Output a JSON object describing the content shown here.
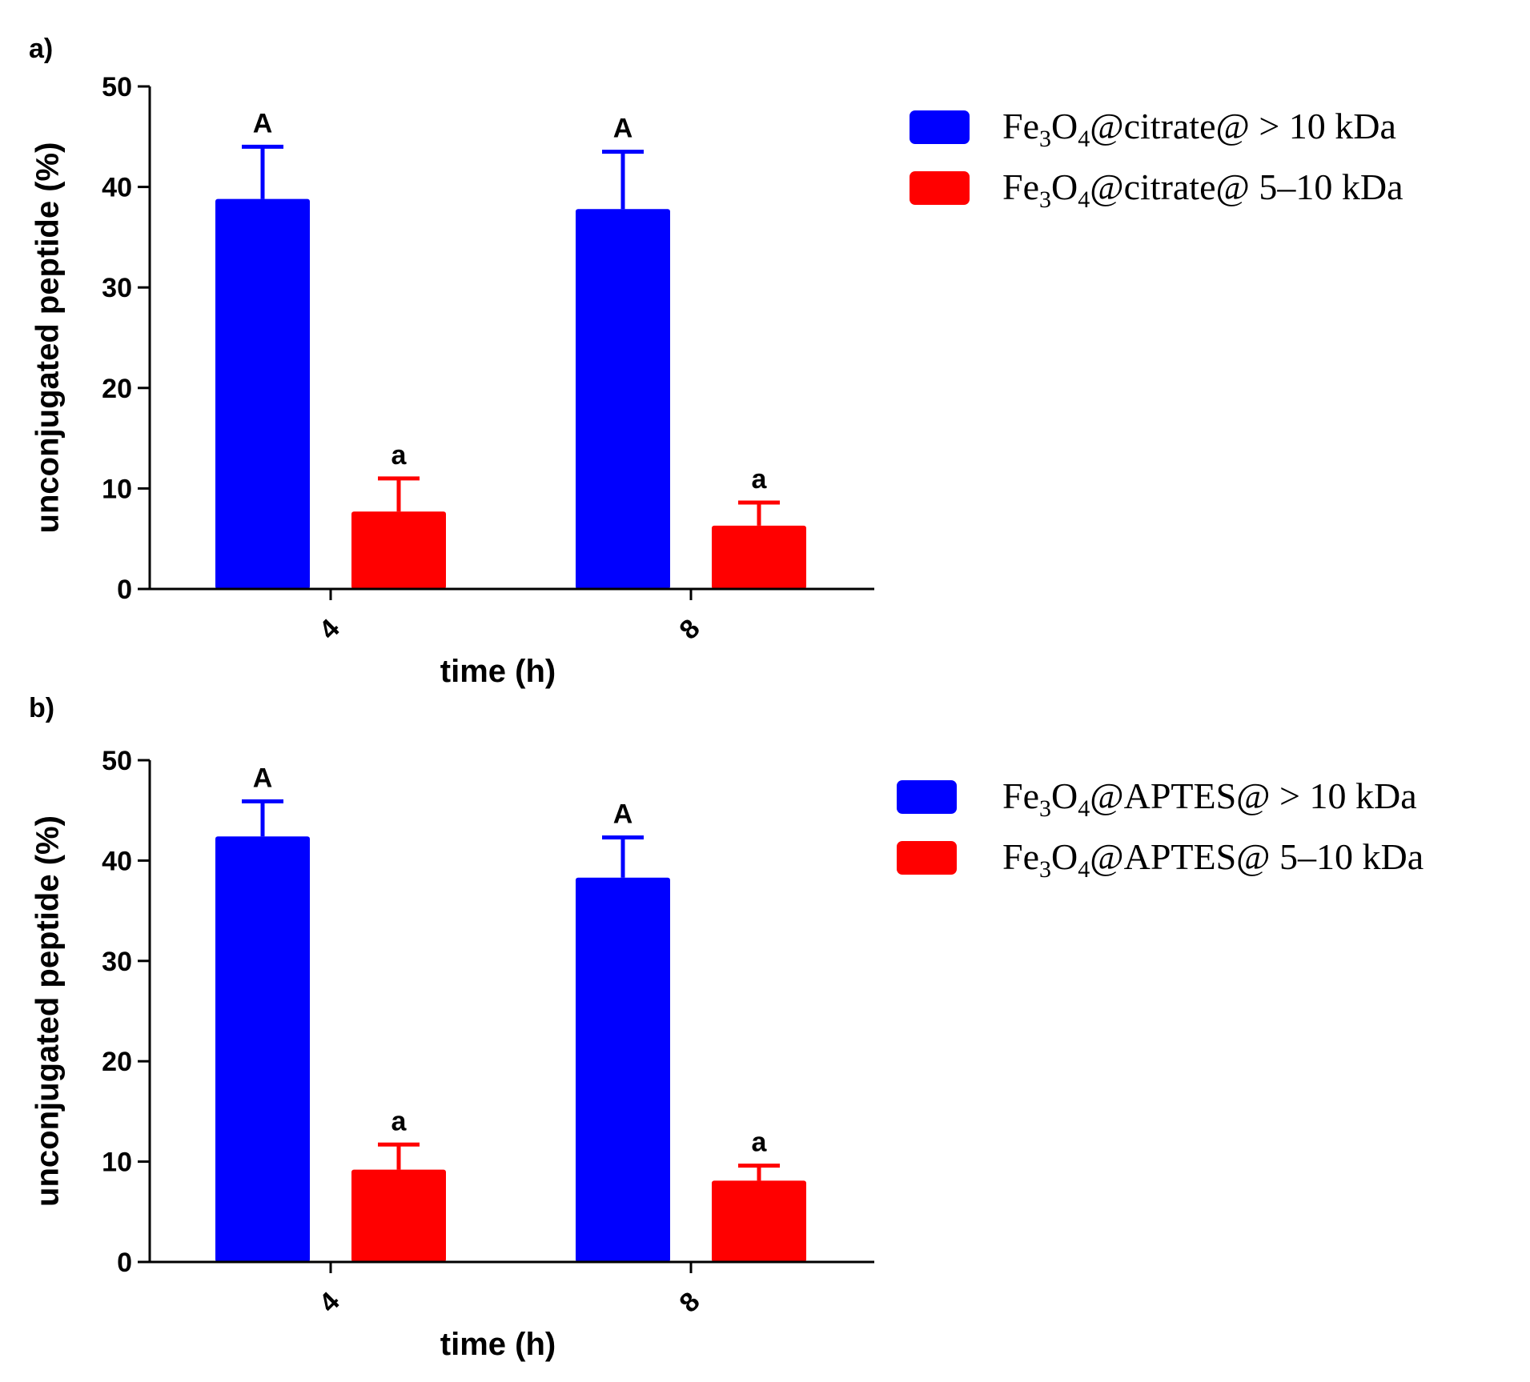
{
  "chart_data": [
    {
      "panel_label": "a)",
      "type": "bar",
      "title": "",
      "xlabel": "time (h)",
      "ylabel": "unconjugated peptide (%)",
      "ylim": [
        0,
        50
      ],
      "yticks": [
        "0",
        "10",
        "20",
        "30",
        "40",
        "50"
      ],
      "categories": [
        "4",
        "8"
      ],
      "series": [
        {
          "name": "Fe3O4@citrate@ > 10 kDa",
          "legend": {
            "pre": "Fe",
            "sub1": "3",
            "mid": "O",
            "sub2": "4",
            "post": "@citrate@ > 10 kDa"
          },
          "color": "#0000ff",
          "values": [
            38.8,
            37.8
          ],
          "errors": [
            5.2,
            5.7
          ],
          "letters": [
            "A",
            "A"
          ]
        },
        {
          "name": "Fe3O4@citrate@ 5–10 kDa",
          "legend": {
            "pre": "Fe",
            "sub1": "3",
            "mid": "O",
            "sub2": "4",
            "post": "@citrate@ 5–10 kDa"
          },
          "color": "#ff0000",
          "values": [
            7.7,
            6.3
          ],
          "errors": [
            3.3,
            2.3
          ],
          "letters": [
            "a",
            "a"
          ]
        }
      ]
    },
    {
      "panel_label": "b)",
      "type": "bar",
      "title": "",
      "xlabel": "time (h)",
      "ylabel": "unconjugated peptide (%)",
      "ylim": [
        0,
        50
      ],
      "yticks": [
        "0",
        "10",
        "20",
        "30",
        "40",
        "50"
      ],
      "categories": [
        "4",
        "8"
      ],
      "series": [
        {
          "name": "Fe3O4@APTES@ > 10 kDa",
          "legend": {
            "pre": "Fe",
            "sub1": "3",
            "mid": "O",
            "sub2": "4",
            "post": "@APTES@ > 10 kDa"
          },
          "color": "#0000ff",
          "values": [
            42.4,
            38.3
          ],
          "errors": [
            3.5,
            4.0
          ],
          "letters": [
            "A",
            "A"
          ]
        },
        {
          "name": "Fe3O4@APTES@ 5–10 kDa",
          "legend": {
            "pre": "Fe",
            "sub1": "3",
            "mid": "O",
            "sub2": "4",
            "post": "@APTES@ 5–10 kDa"
          },
          "color": "#ff0000",
          "values": [
            9.2,
            8.1
          ],
          "errors": [
            2.5,
            1.5
          ],
          "letters": [
            "a",
            "a"
          ]
        }
      ]
    }
  ]
}
